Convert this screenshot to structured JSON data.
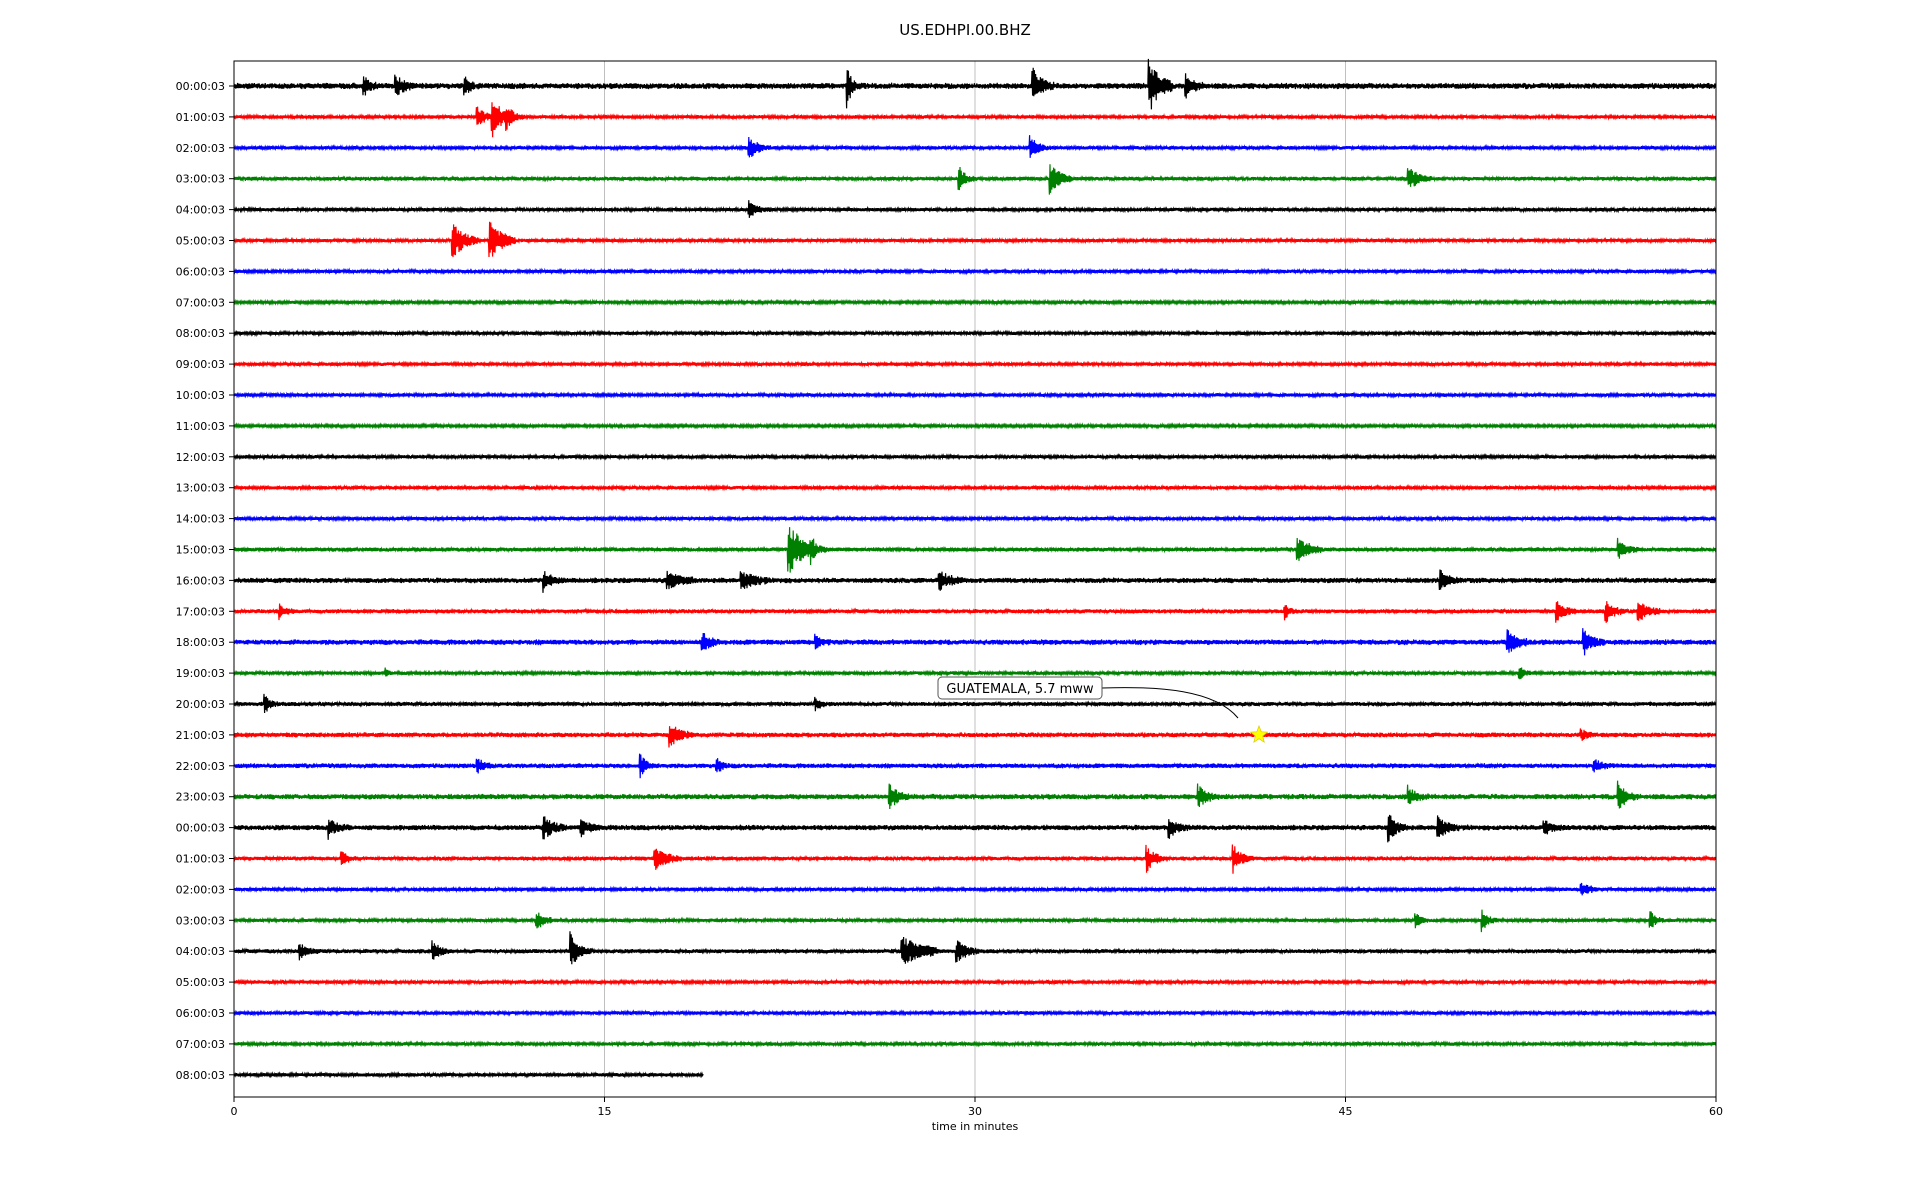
{
  "chart_data": {
    "type": "line",
    "title": "US.EDHPI.00.BHZ",
    "xlabel": "time in minutes",
    "ylabel": "",
    "xlim": [
      0,
      60
    ],
    "x_ticks": [
      0,
      15,
      30,
      45,
      60
    ],
    "grid": "vertical lines at x ticks",
    "row_colors": [
      "#000000",
      "#ff0000",
      "#0000ff",
      "#008000"
    ],
    "rows": [
      {
        "label": "00:00:03",
        "duration": 60,
        "noise": 0.5,
        "events": [
          [
            5.2,
            0.9,
            0.25
          ],
          [
            6.5,
            1.0,
            0.3
          ],
          [
            9.3,
            1.0,
            0.2
          ],
          [
            24.8,
            2.0,
            0.15
          ],
          [
            32.3,
            1.5,
            0.35
          ],
          [
            37.0,
            2.5,
            0.4
          ],
          [
            38.5,
            1.0,
            0.3
          ]
        ]
      },
      {
        "label": "01:00:03",
        "duration": 60,
        "noise": 0.3,
        "events": [
          [
            9.8,
            1.0,
            0.3
          ],
          [
            10.4,
            2.0,
            0.35
          ],
          [
            11.0,
            0.8,
            0.3
          ]
        ]
      },
      {
        "label": "02:00:03",
        "duration": 60,
        "noise": 0.3,
        "events": [
          [
            20.8,
            1.0,
            0.35
          ],
          [
            32.2,
            1.0,
            0.3
          ]
        ]
      },
      {
        "label": "03:00:03",
        "duration": 60,
        "noise": 0.35,
        "events": [
          [
            29.3,
            1.4,
            0.2
          ],
          [
            33.0,
            1.5,
            0.35
          ],
          [
            47.5,
            1.0,
            0.4
          ]
        ]
      },
      {
        "label": "04:00:03",
        "duration": 60,
        "noise": 0.3,
        "events": [
          [
            20.8,
            0.8,
            0.3
          ]
        ]
      },
      {
        "label": "05:00:03",
        "duration": 60,
        "noise": 0.3,
        "events": [
          [
            8.8,
            1.5,
            0.5
          ],
          [
            10.3,
            1.8,
            0.5
          ]
        ]
      },
      {
        "label": "06:00:03",
        "duration": 60,
        "noise": 0.3,
        "events": []
      },
      {
        "label": "07:00:03",
        "duration": 60,
        "noise": 0.25,
        "events": []
      },
      {
        "label": "08:00:03",
        "duration": 60,
        "noise": 0.3,
        "events": []
      },
      {
        "label": "09:00:03",
        "duration": 60,
        "noise": 0.3,
        "events": []
      },
      {
        "label": "10:00:03",
        "duration": 60,
        "noise": 0.3,
        "events": []
      },
      {
        "label": "11:00:03",
        "duration": 60,
        "noise": 0.25,
        "events": []
      },
      {
        "label": "12:00:03",
        "duration": 60,
        "noise": 0.3,
        "events": []
      },
      {
        "label": "13:00:03",
        "duration": 60,
        "noise": 0.3,
        "events": []
      },
      {
        "label": "14:00:03",
        "duration": 60,
        "noise": 0.3,
        "events": []
      },
      {
        "label": "15:00:03",
        "duration": 60,
        "noise": 0.35,
        "events": [
          [
            22.4,
            2.5,
            0.5
          ],
          [
            23.3,
            1.0,
            0.3
          ],
          [
            43.0,
            1.0,
            0.5
          ],
          [
            56.0,
            1.0,
            0.3
          ]
        ]
      },
      {
        "label": "16:00:03",
        "duration": 60,
        "noise": 0.45,
        "events": [
          [
            12.5,
            0.9,
            0.3
          ],
          [
            17.5,
            0.8,
            0.5
          ],
          [
            20.5,
            0.8,
            0.5
          ],
          [
            28.5,
            0.9,
            0.4
          ],
          [
            48.8,
            0.8,
            0.3
          ]
        ]
      },
      {
        "label": "17:00:03",
        "duration": 60,
        "noise": 0.35,
        "events": [
          [
            1.8,
            0.8,
            0.2
          ],
          [
            42.5,
            0.7,
            0.2
          ],
          [
            53.5,
            1.0,
            0.3
          ],
          [
            55.5,
            1.0,
            0.3
          ],
          [
            56.8,
            1.0,
            0.4
          ]
        ]
      },
      {
        "label": "18:00:03",
        "duration": 60,
        "noise": 0.45,
        "events": [
          [
            18.9,
            0.9,
            0.3
          ],
          [
            23.5,
            0.7,
            0.2
          ],
          [
            51.5,
            1.0,
            0.4
          ],
          [
            54.6,
            1.2,
            0.3
          ]
        ]
      },
      {
        "label": "19:00:03",
        "duration": 60,
        "noise": 0.3,
        "events": [
          [
            6.1,
            0.6,
            0.1
          ],
          [
            52.0,
            0.7,
            0.2
          ]
        ]
      },
      {
        "label": "20:00:03",
        "duration": 60,
        "noise": 0.35,
        "events": [
          [
            1.2,
            0.9,
            0.2
          ],
          [
            23.5,
            0.6,
            0.2
          ]
        ]
      },
      {
        "label": "21:00:03",
        "duration": 60,
        "noise": 0.4,
        "events": [
          [
            17.6,
            1.0,
            0.4
          ],
          [
            54.5,
            0.5,
            0.2
          ]
        ]
      },
      {
        "label": "22:00:03",
        "duration": 60,
        "noise": 0.4,
        "events": [
          [
            9.8,
            0.9,
            0.2
          ],
          [
            16.4,
            1.2,
            0.2
          ],
          [
            19.5,
            0.7,
            0.2
          ],
          [
            55.0,
            0.6,
            0.3
          ]
        ]
      },
      {
        "label": "23:00:03",
        "duration": 60,
        "noise": 0.45,
        "events": [
          [
            26.5,
            1.2,
            0.3
          ],
          [
            39.0,
            1.0,
            0.3
          ],
          [
            47.5,
            0.9,
            0.3
          ],
          [
            56.0,
            1.3,
            0.3
          ]
        ]
      },
      {
        "label": "00:00:03",
        "duration": 60,
        "noise": 0.45,
        "events": [
          [
            3.8,
            0.9,
            0.3
          ],
          [
            12.5,
            0.9,
            0.4
          ],
          [
            14.0,
            0.8,
            0.3
          ],
          [
            37.8,
            0.9,
            0.3
          ],
          [
            46.7,
            1.2,
            0.3
          ],
          [
            48.7,
            1.2,
            0.3
          ],
          [
            53.0,
            0.7,
            0.3
          ]
        ]
      },
      {
        "label": "01:00:03",
        "duration": 60,
        "noise": 0.35,
        "events": [
          [
            4.3,
            0.9,
            0.2
          ],
          [
            17.0,
            0.9,
            0.5
          ],
          [
            36.9,
            1.2,
            0.3
          ],
          [
            40.4,
            1.3,
            0.3
          ]
        ]
      },
      {
        "label": "02:00:03",
        "duration": 60,
        "noise": 0.3,
        "events": [
          [
            54.5,
            0.7,
            0.3
          ]
        ]
      },
      {
        "label": "03:00:03",
        "duration": 60,
        "noise": 0.3,
        "events": [
          [
            12.2,
            0.9,
            0.3
          ],
          [
            47.8,
            0.7,
            0.2
          ],
          [
            50.5,
            1.1,
            0.2
          ],
          [
            57.3,
            0.9,
            0.2
          ]
        ]
      },
      {
        "label": "04:00:03",
        "duration": 60,
        "noise": 0.35,
        "events": [
          [
            2.6,
            0.7,
            0.3
          ],
          [
            8.0,
            0.8,
            0.3
          ],
          [
            13.6,
            1.5,
            0.3
          ],
          [
            27.0,
            1.2,
            0.9
          ],
          [
            29.2,
            1.0,
            0.4
          ]
        ]
      },
      {
        "label": "05:00:03",
        "duration": 60,
        "noise": 0.3,
        "events": []
      },
      {
        "label": "06:00:03",
        "duration": 60,
        "noise": 0.3,
        "events": []
      },
      {
        "label": "07:00:03",
        "duration": 60,
        "noise": 0.3,
        "events": []
      },
      {
        "label": "08:00:03",
        "duration": 19,
        "noise": 0.3,
        "events": []
      }
    ],
    "annotations": [
      {
        "text": "GUATEMALA, 5.7 mww",
        "row_index": 21,
        "x": 41.5,
        "marker": "star",
        "marker_color": "#ffff00"
      }
    ]
  }
}
